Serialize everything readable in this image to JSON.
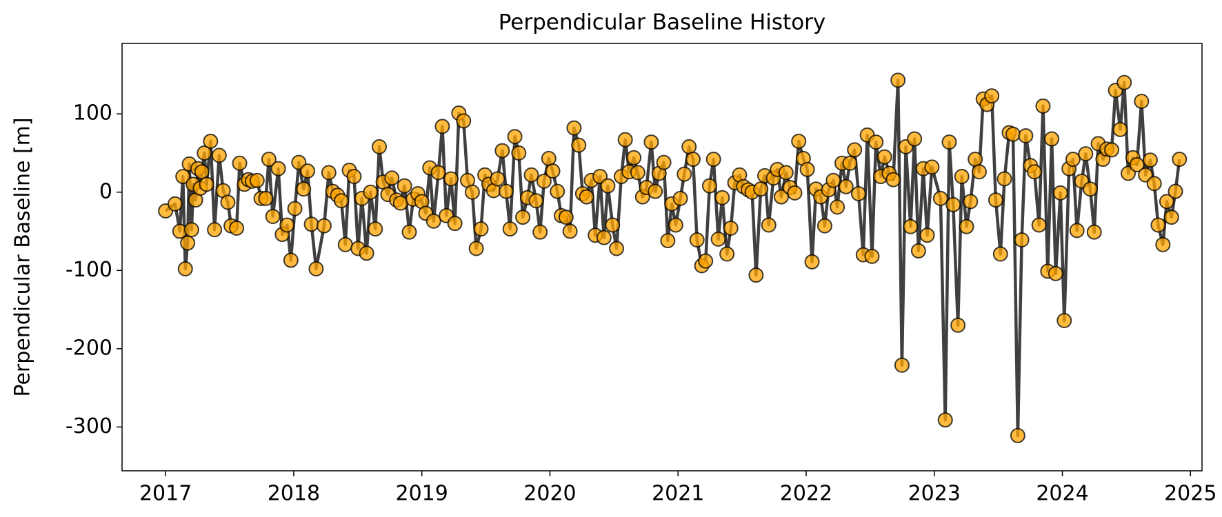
{
  "chart_data": {
    "type": "line",
    "title": "Perpendicular Baseline History",
    "ylabel": "Perpendicular Baseline [m]",
    "color": "#ffa500",
    "line_color": "#404040",
    "xlim": [
      2016.66,
      2025.09
    ],
    "xticks": [
      2017,
      2018,
      2019,
      2020,
      2021,
      2022,
      2023,
      2024,
      2025
    ],
    "ylim": [
      -356,
      190
    ],
    "yticks": [
      -300,
      -200,
      -100,
      0,
      100
    ],
    "x": [
      2017.0,
      2017.074,
      2017.111,
      2017.135,
      2017.154,
      2017.172,
      2017.185,
      2017.203,
      2017.215,
      2017.234,
      2017.252,
      2017.271,
      2017.283,
      2017.302,
      2017.32,
      2017.351,
      2017.382,
      2017.418,
      2017.449,
      2017.486,
      2017.511,
      2017.554,
      2017.578,
      2017.615,
      2017.646,
      2017.677,
      2017.714,
      2017.745,
      2017.782,
      2017.806,
      2017.837,
      2017.88,
      2017.911,
      2017.948,
      2017.978,
      2018.009,
      2018.04,
      2018.077,
      2018.108,
      2018.138,
      2018.175,
      2018.237,
      2018.274,
      2018.305,
      2018.342,
      2018.372,
      2018.403,
      2018.434,
      2018.471,
      2018.502,
      2018.532,
      2018.569,
      2018.6,
      2018.637,
      2018.668,
      2018.698,
      2018.735,
      2018.766,
      2018.803,
      2018.834,
      2018.865,
      2018.902,
      2018.932,
      2018.969,
      2019.0,
      2019.031,
      2019.062,
      2019.092,
      2019.129,
      2019.16,
      2019.191,
      2019.228,
      2019.258,
      2019.289,
      2019.326,
      2019.357,
      2019.394,
      2019.425,
      2019.462,
      2019.492,
      2019.523,
      2019.56,
      2019.591,
      2019.628,
      2019.658,
      2019.689,
      2019.726,
      2019.757,
      2019.788,
      2019.825,
      2019.855,
      2019.892,
      2019.923,
      2019.954,
      2019.991,
      2020.022,
      2020.058,
      2020.089,
      2020.126,
      2020.157,
      2020.188,
      2020.225,
      2020.255,
      2020.286,
      2020.323,
      2020.354,
      2020.391,
      2020.422,
      2020.452,
      2020.489,
      2020.52,
      2020.557,
      2020.588,
      2020.618,
      2020.655,
      2020.686,
      2020.723,
      2020.754,
      2020.791,
      2020.822,
      2020.852,
      2020.889,
      2020.92,
      2020.951,
      2020.982,
      2021.018,
      2021.049,
      2021.086,
      2021.117,
      2021.148,
      2021.185,
      2021.215,
      2021.246,
      2021.277,
      2021.314,
      2021.345,
      2021.382,
      2021.412,
      2021.443,
      2021.48,
      2021.511,
      2021.548,
      2021.578,
      2021.609,
      2021.646,
      2021.677,
      2021.708,
      2021.745,
      2021.775,
      2021.806,
      2021.843,
      2021.874,
      2021.911,
      2021.942,
      2021.978,
      2022.009,
      2022.046,
      2022.077,
      2022.114,
      2022.145,
      2022.175,
      2022.212,
      2022.243,
      2022.28,
      2022.311,
      2022.342,
      2022.378,
      2022.409,
      2022.446,
      2022.477,
      2022.514,
      2022.545,
      2022.582,
      2022.612,
      2022.649,
      2022.68,
      2022.717,
      2022.748,
      2022.778,
      2022.815,
      2022.846,
      2022.877,
      2022.914,
      2022.945,
      2022.982,
      2023.049,
      2023.086,
      2023.117,
      2023.148,
      2023.185,
      2023.215,
      2023.252,
      2023.283,
      2023.32,
      2023.351,
      2023.382,
      2023.412,
      2023.449,
      2023.48,
      2023.517,
      2023.548,
      2023.585,
      2023.615,
      2023.652,
      2023.683,
      2023.714,
      2023.751,
      2023.782,
      2023.818,
      2023.849,
      2023.886,
      2023.917,
      2023.948,
      2023.985,
      2024.015,
      2024.052,
      2024.083,
      2024.114,
      2024.151,
      2024.182,
      2024.218,
      2024.249,
      2024.28,
      2024.317,
      2024.348,
      2024.385,
      2024.415,
      2024.452,
      2024.483,
      2024.514,
      2024.551,
      2024.582,
      2024.618,
      2024.649,
      2024.686,
      2024.717,
      2024.748,
      2024.785,
      2024.815,
      2024.852,
      2024.883,
      2024.914
    ],
    "values": [
      -24,
      -15,
      -50,
      20,
      -98,
      -65,
      36,
      -48,
      10,
      -10,
      30,
      5,
      26,
      50,
      10,
      65,
      -48,
      47,
      2,
      -13,
      -43,
      -46,
      37,
      10,
      16,
      14,
      15,
      -8,
      -8,
      42,
      -31,
      30,
      -54,
      -42,
      -87,
      -21,
      38,
      4,
      27,
      -41,
      -98,
      -43,
      25,
      1,
      -4,
      -11,
      -67,
      28,
      20,
      -72,
      -8,
      -78,
      0,
      -47,
      58,
      13,
      -3,
      18,
      -10,
      -14,
      8,
      -51,
      -9,
      -2,
      -12,
      -27,
      31,
      -37,
      25,
      84,
      -30,
      17,
      -40,
      101,
      91,
      15,
      0,
      -72,
      -47,
      22,
      10,
      2,
      17,
      53,
      1,
      -47,
      71,
      50,
      -32,
      -7,
      22,
      -11,
      -51,
      14,
      43,
      27,
      1,
      -30,
      -32,
      -50,
      82,
      60,
      -2,
      -6,
      15,
      -55,
      20,
      -58,
      8,
      -42,
      -72,
      20,
      67,
      26,
      44,
      25,
      -6,
      6,
      64,
      1,
      24,
      38,
      -62,
      -15,
      -42,
      -8,
      23,
      58,
      42,
      -61,
      -94,
      -88,
      8,
      42,
      -60,
      -7,
      -79,
      -46,
      12,
      22,
      7,
      3,
      0,
      -106,
      4,
      21,
      -42,
      18,
      29,
      -6,
      25,
      6,
      -1,
      65,
      43,
      29,
      -89,
      4,
      -6,
      -43,
      3,
      15,
      -19,
      37,
      7,
      37,
      54,
      -2,
      -80,
      73,
      -82,
      64,
      20,
      45,
      24,
      16,
      143,
      -221,
      58,
      -44,
      68,
      -75,
      30,
      -55,
      32,
      -8,
      -291,
      64,
      -16,
      -170,
      20,
      -44,
      -12,
      42,
      26,
      119,
      112,
      123,
      -10,
      -79,
      17,
      76,
      74,
      -311,
      -61,
      72,
      34,
      26,
      -42,
      110,
      -101,
      68,
      -104,
      -1,
      -164,
      30,
      42,
      -49,
      14,
      49,
      4,
      -51,
      62,
      42,
      55,
      54,
      130,
      80,
      140,
      24,
      44,
      35,
      116,
      22,
      41,
      11,
      -42,
      -67,
      -12,
      -32,
      1,
      42
    ]
  }
}
